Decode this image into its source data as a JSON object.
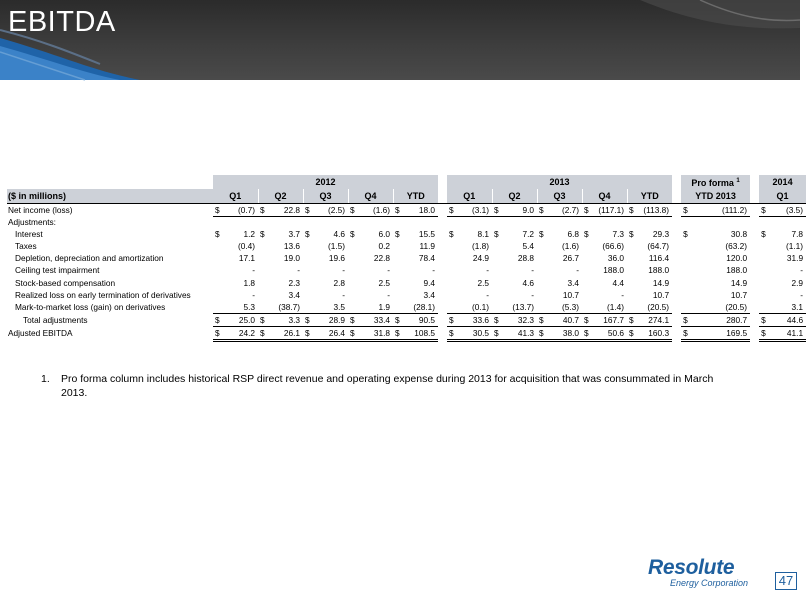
{
  "header": {
    "title": "EBITDA"
  },
  "table": {
    "unit_label": "($ in millions)",
    "year_2012": "2012",
    "year_2013": "2013",
    "proforma_label": "Pro forma",
    "proforma_sup": "1",
    "year_2014": "2014",
    "quarters_2012": [
      "Q1",
      "Q2",
      "Q3",
      "Q4",
      "YTD"
    ],
    "quarters_2013": [
      "Q1",
      "Q2",
      "Q3",
      "Q4",
      "YTD"
    ],
    "proforma_col": "YTD 2013",
    "q_2014": "Q1",
    "dollar": "$",
    "rows": {
      "net_income": {
        "label": "Net income (loss)",
        "values": [
          "(0.7)",
          "22.8",
          "(2.5)",
          "(1.6)",
          "18.0",
          "(3.1)",
          "9.0",
          "(2.7)",
          "(117.1)",
          "(113.8)",
          "(111.2)",
          "(3.5)"
        ]
      },
      "adjustments": {
        "label": "Adjustments:"
      },
      "interest": {
        "label": "Interest",
        "values": [
          "1.2",
          "3.7",
          "4.6",
          "6.0",
          "15.5",
          "8.1",
          "7.2",
          "6.8",
          "7.3",
          "29.3",
          "30.8",
          "7.8"
        ]
      },
      "taxes": {
        "label": "Taxes",
        "values": [
          "(0.4)",
          "13.6",
          "(1.5)",
          "0.2",
          "11.9",
          "(1.8)",
          "5.4",
          "(1.6)",
          "(66.6)",
          "(64.7)",
          "(63.2)",
          "(1.1)"
        ]
      },
      "dda": {
        "label": "Depletion, depreciation and amortization",
        "values": [
          "17.1",
          "19.0",
          "19.6",
          "22.8",
          "78.4",
          "24.9",
          "28.8",
          "26.7",
          "36.0",
          "116.4",
          "120.0",
          "31.9"
        ]
      },
      "ceiling": {
        "label": "Ceiling test impairment",
        "values": [
          "-",
          "-",
          "-",
          "-",
          "-",
          "-",
          "-",
          "-",
          "188.0",
          "188.0",
          "188.0",
          "-"
        ]
      },
      "stock": {
        "label": "Stock-based compensation",
        "values": [
          "1.8",
          "2.3",
          "2.8",
          "2.5",
          "9.4",
          "2.5",
          "4.6",
          "3.4",
          "4.4",
          "14.9",
          "14.9",
          "2.9"
        ]
      },
      "realized": {
        "label": "Realized loss on early termination of derivatives",
        "values": [
          "-",
          "3.4",
          "-",
          "-",
          "3.4",
          "-",
          "-",
          "10.7",
          "-",
          "10.7",
          "10.7",
          "-"
        ]
      },
      "mtm": {
        "label": "Mark-to-market loss (gain) on derivatives",
        "values": [
          "5.3",
          "(38.7)",
          "3.5",
          "1.9",
          "(28.1)",
          "(0.1)",
          "(13.7)",
          "(5.3)",
          "(1.4)",
          "(20.5)",
          "(20.5)",
          "3.1"
        ]
      },
      "total_adj": {
        "label": "Total adjustments",
        "values": [
          "25.0",
          "3.3",
          "28.9",
          "33.4",
          "90.5",
          "33.6",
          "32.3",
          "40.7",
          "167.7",
          "274.1",
          "280.7",
          "44.6"
        ]
      },
      "ebitda": {
        "label": "Adjusted EBITDA",
        "values": [
          "24.2",
          "26.1",
          "26.4",
          "31.8",
          "108.5",
          "30.5",
          "41.3",
          "38.0",
          "50.6",
          "160.3",
          "169.5",
          "41.1"
        ]
      }
    }
  },
  "footnote": {
    "number": "1.",
    "text": "Pro forma column includes historical RSP direct revenue and operating expense during 2013 for acquisition that was consummated in March 2013."
  },
  "logo": {
    "brand": "Resolute",
    "sub": "Energy Corporation"
  },
  "page_number": "47",
  "colors": {
    "header_bg": "#3a3a3a",
    "table_header": "#cdd1d8",
    "accent": "#1e5f9e"
  }
}
